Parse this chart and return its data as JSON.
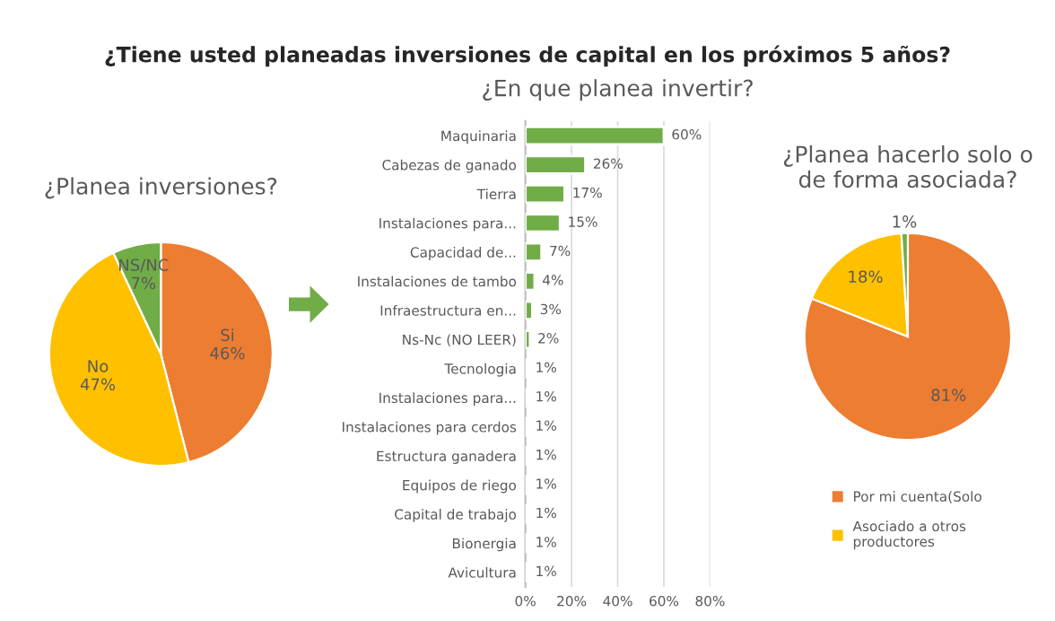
{
  "chart_data": [
    {
      "type": "other",
      "title": "¿Tiene usted planeadas inversiones de capital en los próximos 5 años?"
    },
    {
      "type": "pie",
      "title": "¿Planea inversiones?",
      "categories": [
        "Si",
        "No",
        "NS/NC"
      ],
      "values": [
        46,
        47,
        7
      ],
      "colors": [
        "#ed7d31",
        "#ffc000",
        "#70ad47"
      ],
      "value_labels": [
        "46%",
        "47%",
        "7%"
      ],
      "legend": false
    },
    {
      "type": "bar",
      "orientation": "horizontal",
      "title": "¿En que planea invertir?",
      "categories": [
        "Maquinaria",
        "Cabezas de ganado",
        "Tierra",
        "Instalaciones para...",
        "Capacidad de...",
        "Instalaciones de tambo",
        "Infraestructura en...",
        "Ns-Nc (NO LEER)",
        "Tecnologia",
        "Instalaciones para...",
        "Instalaciones para cerdos",
        "Estructura ganadera",
        "Equipos de riego",
        "Capital de trabajo",
        "Bionergia",
        "Avicultura"
      ],
      "values": [
        60,
        26,
        17,
        15,
        7,
        4,
        3,
        2,
        1,
        1,
        1,
        1,
        1,
        1,
        1,
        1
      ],
      "value_labels": [
        "60%",
        "26%",
        "17%",
        "15%",
        "7%",
        "4%",
        "3%",
        "2%",
        "1%",
        "1%",
        "1%",
        "1%",
        "1%",
        "1%",
        "1%",
        "1%"
      ],
      "color": "#70ad47",
      "xlim": [
        0,
        80
      ],
      "xticks": [
        {
          "value": 0,
          "label": "0%"
        },
        {
          "value": 20,
          "label": "20%"
        },
        {
          "value": 40,
          "label": "40%"
        },
        {
          "value": 60,
          "label": "60%"
        },
        {
          "value": 80,
          "label": "80%"
        }
      ],
      "grid": "x"
    },
    {
      "type": "pie",
      "title": "¿Planea hacerlo solo o\nde forma asociada?",
      "categories": [
        "Por mi cuenta(Solo",
        "Asociado a otros\nproductores",
        null
      ],
      "values": [
        81,
        18,
        1
      ],
      "colors": [
        "#ed7d31",
        "#ffc000",
        "#70ad47"
      ],
      "value_labels": [
        "81%",
        "18%",
        "1%"
      ],
      "legend": "bottom"
    }
  ]
}
